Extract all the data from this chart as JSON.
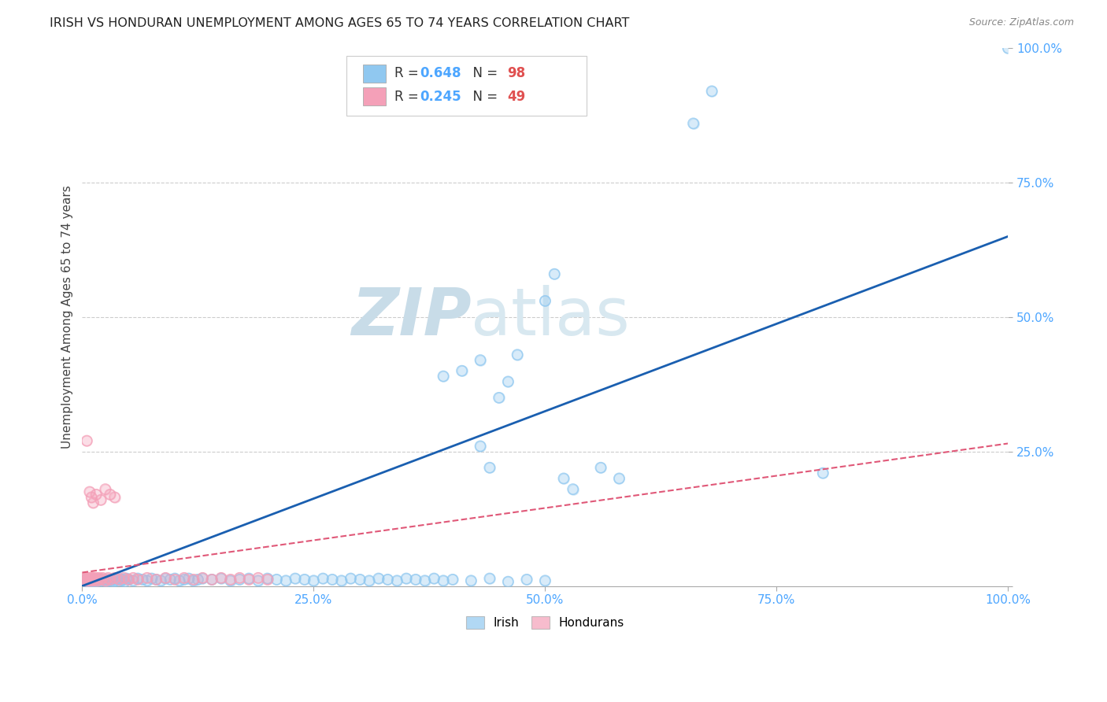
{
  "title": "IRISH VS HONDURAN UNEMPLOYMENT AMONG AGES 65 TO 74 YEARS CORRELATION CHART",
  "source": "Source: ZipAtlas.com",
  "ylabel": "Unemployment Among Ages 65 to 74 years",
  "xlim": [
    0,
    1
  ],
  "ylim": [
    0,
    1
  ],
  "irish_R": 0.648,
  "irish_N": 98,
  "honduran_R": 0.245,
  "honduran_N": 49,
  "irish_color": "#90c8f0",
  "honduran_color": "#f4a0b8",
  "irish_line_color": "#1a5fb0",
  "honduran_line_color": "#e05878",
  "background_color": "#ffffff",
  "grid_color": "#cccccc",
  "tick_color": "#4da6ff",
  "title_color": "#222222",
  "source_color": "#888888",
  "watermark_color": "#ddeef8",
  "irish_x": [
    0.002,
    0.003,
    0.004,
    0.005,
    0.006,
    0.007,
    0.008,
    0.009,
    0.01,
    0.011,
    0.012,
    0.013,
    0.014,
    0.015,
    0.016,
    0.018,
    0.02,
    0.022,
    0.024,
    0.026,
    0.028,
    0.03,
    0.032,
    0.034,
    0.036,
    0.038,
    0.04,
    0.042,
    0.044,
    0.046,
    0.048,
    0.05,
    0.055,
    0.06,
    0.065,
    0.07,
    0.075,
    0.08,
    0.085,
    0.09,
    0.095,
    0.1,
    0.105,
    0.11,
    0.115,
    0.12,
    0.125,
    0.13,
    0.14,
    0.15,
    0.16,
    0.17,
    0.18,
    0.19,
    0.2,
    0.21,
    0.22,
    0.23,
    0.24,
    0.25,
    0.26,
    0.27,
    0.28,
    0.29,
    0.3,
    0.31,
    0.32,
    0.33,
    0.34,
    0.35,
    0.36,
    0.37,
    0.38,
    0.39,
    0.4,
    0.42,
    0.44,
    0.46,
    0.48,
    0.5,
    0.46,
    0.47,
    0.45,
    0.43,
    0.41,
    0.39,
    0.43,
    0.44,
    0.5,
    0.51,
    0.52,
    0.53,
    0.56,
    0.58,
    0.8,
    0.66,
    0.68,
    1.0
  ],
  "irish_y": [
    0.01,
    0.01,
    0.008,
    0.012,
    0.01,
    0.008,
    0.012,
    0.006,
    0.01,
    0.012,
    0.008,
    0.01,
    0.012,
    0.008,
    0.01,
    0.012,
    0.01,
    0.012,
    0.01,
    0.008,
    0.012,
    0.01,
    0.012,
    0.008,
    0.01,
    0.012,
    0.014,
    0.01,
    0.012,
    0.008,
    0.014,
    0.012,
    0.01,
    0.014,
    0.012,
    0.01,
    0.014,
    0.012,
    0.01,
    0.014,
    0.012,
    0.014,
    0.01,
    0.012,
    0.014,
    0.01,
    0.012,
    0.014,
    0.012,
    0.014,
    0.01,
    0.012,
    0.014,
    0.01,
    0.014,
    0.012,
    0.01,
    0.014,
    0.012,
    0.01,
    0.014,
    0.012,
    0.01,
    0.014,
    0.012,
    0.01,
    0.014,
    0.012,
    0.01,
    0.014,
    0.012,
    0.01,
    0.014,
    0.01,
    0.012,
    0.01,
    0.014,
    0.008,
    0.012,
    0.01,
    0.38,
    0.43,
    0.35,
    0.42,
    0.4,
    0.39,
    0.26,
    0.22,
    0.53,
    0.58,
    0.2,
    0.18,
    0.22,
    0.2,
    0.21,
    0.86,
    0.92,
    1.0
  ],
  "honduran_x": [
    0.002,
    0.003,
    0.004,
    0.005,
    0.006,
    0.007,
    0.008,
    0.009,
    0.01,
    0.011,
    0.012,
    0.013,
    0.015,
    0.016,
    0.018,
    0.02,
    0.022,
    0.025,
    0.028,
    0.03,
    0.035,
    0.04,
    0.045,
    0.05,
    0.055,
    0.06,
    0.07,
    0.08,
    0.09,
    0.1,
    0.11,
    0.12,
    0.13,
    0.14,
    0.15,
    0.16,
    0.17,
    0.18,
    0.19,
    0.2,
    0.005,
    0.008,
    0.01,
    0.012,
    0.015,
    0.02,
    0.025,
    0.03,
    0.035
  ],
  "honduran_y": [
    0.012,
    0.015,
    0.01,
    0.015,
    0.012,
    0.01,
    0.015,
    0.012,
    0.015,
    0.01,
    0.015,
    0.012,
    0.015,
    0.01,
    0.015,
    0.012,
    0.015,
    0.01,
    0.015,
    0.012,
    0.015,
    0.012,
    0.015,
    0.012,
    0.015,
    0.012,
    0.015,
    0.012,
    0.015,
    0.012,
    0.015,
    0.012,
    0.015,
    0.012,
    0.015,
    0.012,
    0.015,
    0.012,
    0.015,
    0.012,
    0.27,
    0.175,
    0.165,
    0.155,
    0.17,
    0.16,
    0.18,
    0.17,
    0.165
  ],
  "irish_line_x": [
    0.0,
    1.0
  ],
  "irish_line_y": [
    0.0,
    0.65
  ],
  "honduran_line_x": [
    0.0,
    1.0
  ],
  "honduran_line_y": [
    0.025,
    0.265
  ]
}
